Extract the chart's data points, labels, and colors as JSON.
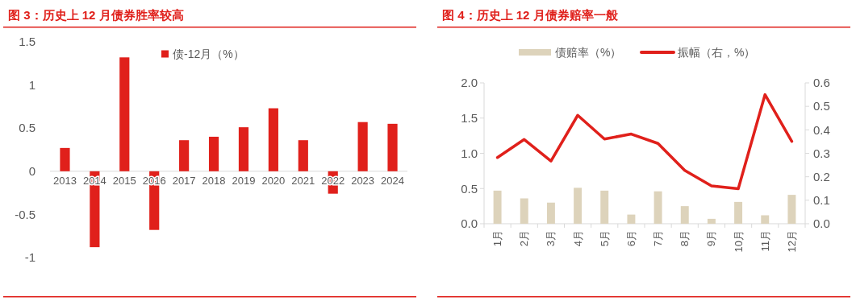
{
  "chart_data": [
    {
      "type": "bar",
      "title": "图 3：历史上 12 月债券胜率较高",
      "categories": [
        "2013",
        "2014",
        "2015",
        "2016",
        "2017",
        "2018",
        "2019",
        "2020",
        "2021",
        "2022",
        "2023",
        "2024"
      ],
      "series": [
        {
          "name": "债-12月（%）",
          "color": "#e0201b",
          "values": [
            0.27,
            -0.88,
            1.32,
            -0.68,
            0.36,
            0.4,
            0.51,
            0.73,
            0.36,
            -0.26,
            0.57,
            0.55
          ]
        }
      ],
      "ylim": [
        -1,
        1.5
      ],
      "yticks": [
        -1,
        -0.5,
        0,
        0.5,
        1,
        1.5
      ],
      "legend": "top"
    },
    {
      "type": "bar",
      "title": "图 4：历史上 12 月债券赔率一般",
      "categories": [
        "1月",
        "2月",
        "3月",
        "4月",
        "5月",
        "6月",
        "7月",
        "8月",
        "9月",
        "10月",
        "11月",
        "12月"
      ],
      "series": [
        {
          "name": "债赔率（%）",
          "color": "#ddd3bb",
          "values": [
            0.47,
            0.36,
            0.3,
            0.51,
            0.47,
            0.13,
            0.46,
            0.25,
            0.07,
            0.31,
            0.12,
            0.41
          ]
        },
        {
          "name": "振幅（右，%）",
          "type": "line",
          "axis": "y2",
          "color": "#e0201b",
          "values": [
            0.282,
            0.359,
            0.267,
            0.462,
            0.361,
            0.382,
            0.342,
            0.227,
            0.161,
            0.149,
            0.55,
            0.351
          ]
        }
      ],
      "ylim": [
        0,
        2
      ],
      "yticks": [
        {
          "value": 0,
          "label": "0.0"
        },
        {
          "value": 0.5,
          "label": "0.5"
        },
        {
          "value": 1,
          "label": "1.0"
        },
        {
          "value": 1.5,
          "label": "1.5"
        },
        {
          "value": 2,
          "label": "2.0"
        }
      ],
      "y2lim": [
        0,
        0.6
      ],
      "y2ticks": [
        {
          "value": 0,
          "label": "0.0"
        },
        {
          "value": 0.1,
          "label": "0.1"
        },
        {
          "value": 0.2,
          "label": "0.2"
        },
        {
          "value": 0.3,
          "label": "0.3"
        },
        {
          "value": 0.4,
          "label": "0.4"
        },
        {
          "value": 0.5,
          "label": "0.5"
        },
        {
          "value": 0.6,
          "label": "0.6"
        }
      ],
      "legend": "top"
    }
  ]
}
